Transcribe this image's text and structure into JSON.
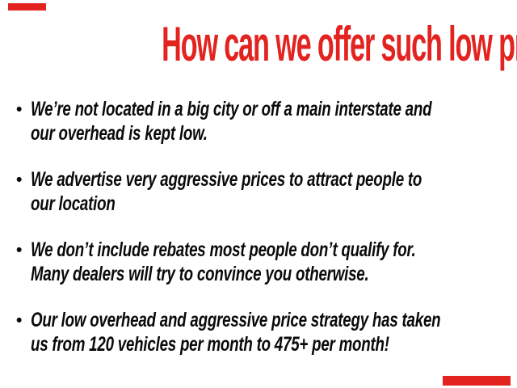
{
  "slide": {
    "background_color": "#ffffff",
    "accent_color": "#e32320",
    "text_color": "#0a0a0a"
  },
  "headline": {
    "text": "How can we offer such low prices?",
    "color": "#e32320"
  },
  "bullets": {
    "marker": "•",
    "items": [
      {
        "lines": [
          "We’re not located in a big city or off a main interstate and",
          "our overhead is kept low."
        ]
      },
      {
        "lines": [
          "We advertise very aggressive prices to attract people to",
          "our location"
        ]
      },
      {
        "lines": [
          "We don’t include rebates most people don’t qualify for.",
          "Many dealers will try to convince you otherwise."
        ]
      },
      {
        "lines": [
          "Our low overhead and aggressive price strategy has taken",
          "us from 120 vehicles per month to 475+ per month!"
        ]
      }
    ]
  }
}
